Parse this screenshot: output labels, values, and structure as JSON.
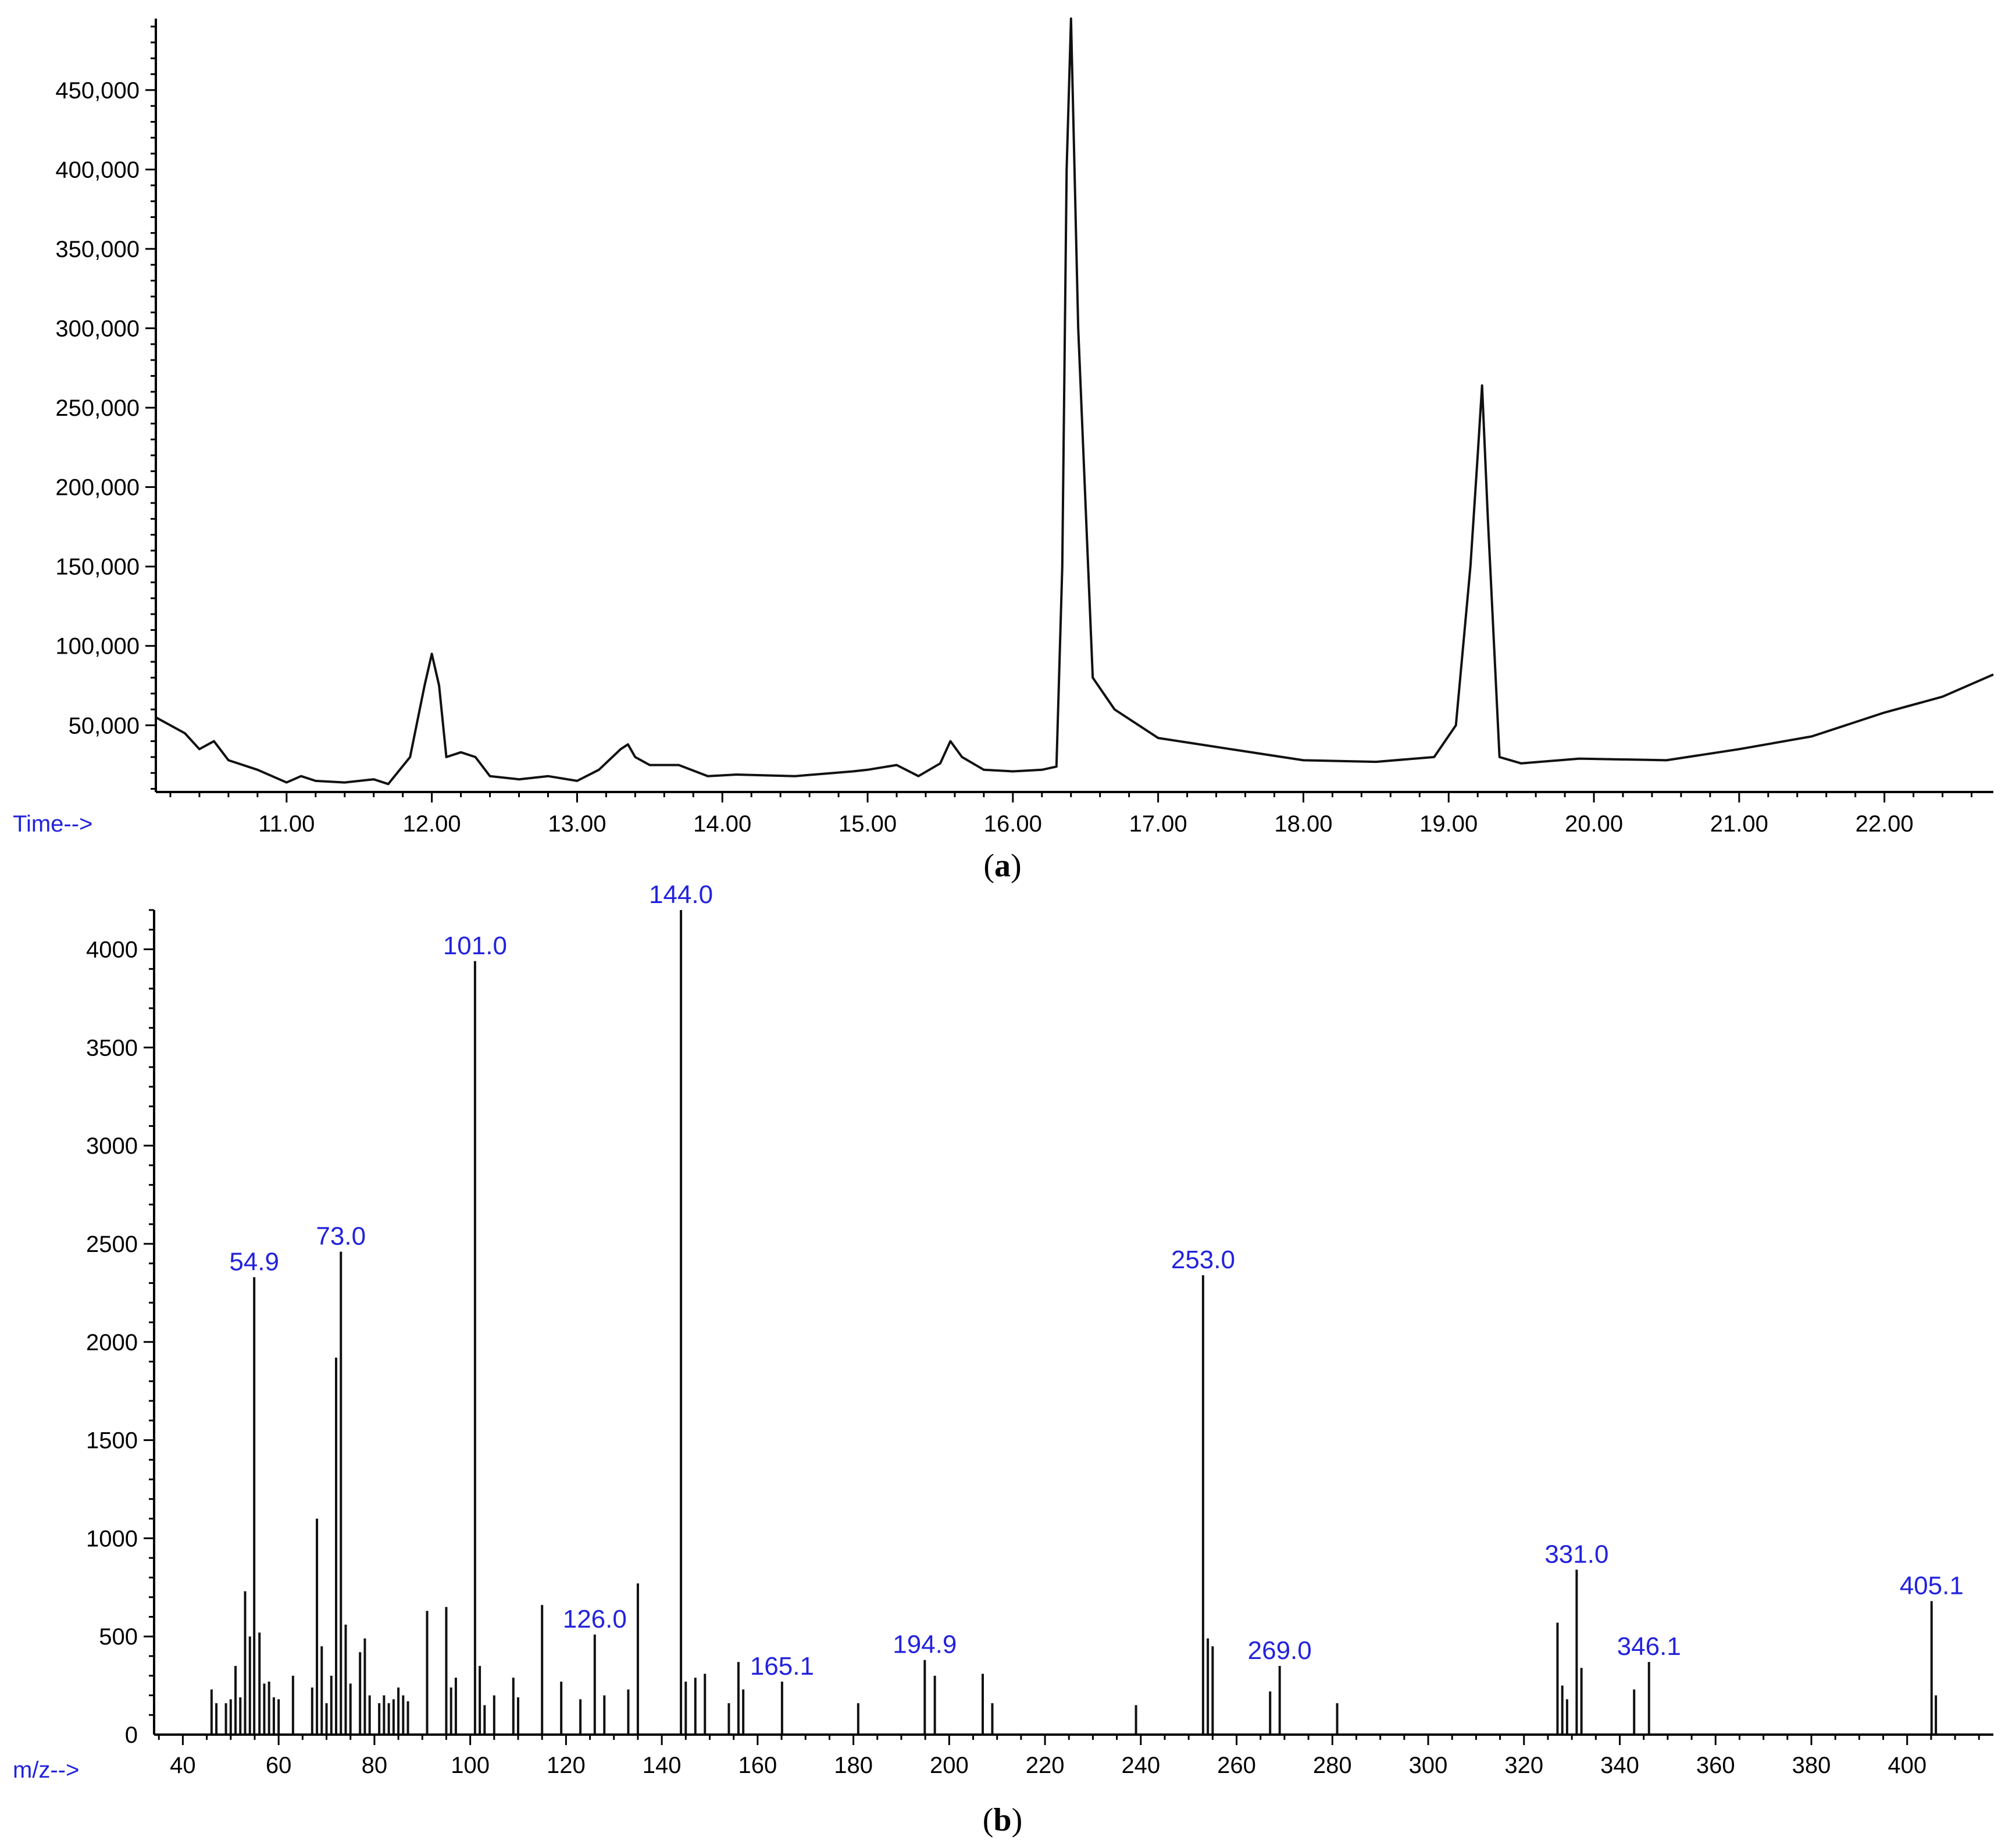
{
  "panels": {
    "a": {
      "caption_open": "(",
      "caption_letter": "a",
      "caption_close": ")"
    },
    "b": {
      "caption_open": "(",
      "caption_letter": "b",
      "caption_close": ")"
    }
  },
  "chart_data": [
    {
      "type": "line",
      "xlabel": "Time-->",
      "ylabel": "",
      "xlim": [
        10.1,
        22.75
      ],
      "ylim": [
        8000,
        495000
      ],
      "x_ticks": [
        11,
        12,
        13,
        14,
        15,
        16,
        17,
        18,
        19,
        20,
        21,
        22
      ],
      "x_tick_labels": [
        "11.00",
        "12.00",
        "13.00",
        "14.00",
        "15.00",
        "16.00",
        "17.00",
        "18.00",
        "19.00",
        "20.00",
        "21.00",
        "22.00"
      ],
      "y_ticks": [
        50000,
        100000,
        150000,
        200000,
        250000,
        300000,
        350000,
        400000,
        450000
      ],
      "y_tick_labels": [
        "50,000",
        "100,000",
        "150,000",
        "200,000",
        "250,000",
        "300,000",
        "350,000",
        "400,000",
        "450,000"
      ],
      "series": [
        {
          "x": [
            10.1,
            10.3,
            10.4,
            10.5,
            10.6,
            10.8,
            11.0,
            11.1,
            11.2,
            11.4,
            11.6,
            11.7,
            11.85,
            11.95,
            12.0,
            12.05,
            12.1,
            12.2,
            12.3,
            12.4,
            12.6,
            12.8,
            13.0,
            13.15,
            13.3,
            13.35,
            13.4,
            13.5,
            13.7,
            13.9,
            14.1,
            14.5,
            14.9,
            15.0,
            15.2,
            15.35,
            15.5,
            15.57,
            15.65,
            15.8,
            16.0,
            16.2,
            16.3,
            16.34,
            16.37,
            16.4,
            16.45,
            16.55,
            16.7,
            17.0,
            17.5,
            18.0,
            18.5,
            18.9,
            19.05,
            19.15,
            19.2,
            19.23,
            19.27,
            19.35,
            19.5,
            19.9,
            20.5,
            21.0,
            21.5,
            22.0,
            22.4,
            22.75
          ],
          "y": [
            55000,
            45000,
            35000,
            40000,
            28000,
            22000,
            14000,
            18000,
            15000,
            14000,
            16000,
            13000,
            30000,
            75000,
            95000,
            75000,
            30000,
            33000,
            30000,
            18000,
            16000,
            18000,
            15000,
            22000,
            35000,
            38000,
            30000,
            25000,
            25000,
            18000,
            19000,
            18000,
            21000,
            22000,
            25000,
            18000,
            26000,
            40000,
            30000,
            22000,
            21000,
            22000,
            24000,
            150000,
            400000,
            495000,
            300000,
            80000,
            60000,
            42000,
            35000,
            28000,
            27000,
            30000,
            50000,
            150000,
            220000,
            264000,
            180000,
            30000,
            26000,
            29000,
            28000,
            35000,
            43000,
            58000,
            68000,
            82000
          ]
        }
      ]
    },
    {
      "type": "bar",
      "xlabel": "m/z-->",
      "ylabel": "",
      "xlim": [
        34,
        418
      ],
      "ylim": [
        0,
        4200
      ],
      "x_ticks": [
        40,
        60,
        80,
        100,
        120,
        140,
        160,
        180,
        200,
        220,
        240,
        260,
        280,
        300,
        320,
        340,
        360,
        380,
        400
      ],
      "x_tick_labels": [
        "40",
        "60",
        "80",
        "100",
        "120",
        "140",
        "160",
        "180",
        "200",
        "220",
        "240",
        "260",
        "280",
        "300",
        "320",
        "340",
        "360",
        "380",
        "400"
      ],
      "y_ticks": [
        0,
        500,
        1000,
        1500,
        2000,
        2500,
        3000,
        3500,
        4000
      ],
      "y_tick_labels": [
        "0",
        "500",
        "1000",
        "1500",
        "2000",
        "2500",
        "3000",
        "3500",
        "4000"
      ],
      "series": [
        {
          "x": [
            46,
            47,
            49,
            50,
            51,
            52,
            53,
            54,
            54.9,
            56,
            57,
            58,
            59,
            60,
            63,
            67,
            68,
            69,
            70,
            71,
            72,
            73.0,
            74,
            75,
            77,
            78,
            79,
            81,
            82,
            83,
            84,
            85,
            86,
            87,
            91,
            95,
            96,
            97,
            101.0,
            102,
            103,
            105,
            109,
            110,
            115,
            119,
            123,
            126.0,
            128,
            133,
            135,
            144.0,
            145,
            147,
            149,
            154,
            156,
            157,
            165.1,
            181,
            194.9,
            197,
            207,
            209,
            239,
            253.0,
            254,
            255,
            267,
            269.0,
            281,
            327,
            328,
            329,
            331.0,
            332,
            343,
            346.1,
            405.1,
            406
          ],
          "values": [
            230,
            160,
            160,
            180,
            350,
            190,
            730,
            500,
            2330,
            520,
            260,
            270,
            190,
            180,
            300,
            240,
            1100,
            450,
            160,
            300,
            1920,
            2460,
            560,
            260,
            420,
            490,
            200,
            160,
            200,
            160,
            180,
            240,
            200,
            170,
            630,
            650,
            240,
            290,
            3940,
            350,
            150,
            200,
            290,
            190,
            660,
            270,
            180,
            510,
            200,
            230,
            770,
            4200,
            270,
            290,
            310,
            160,
            370,
            230,
            270,
            160,
            380,
            300,
            310,
            160,
            150,
            2340,
            490,
            450,
            220,
            350,
            160,
            570,
            250,
            180,
            840,
            340,
            230,
            370,
            680,
            200
          ]
        }
      ],
      "peak_labels": [
        "54.9",
        "73.0",
        "101.0",
        "126.0",
        "144.0",
        "165.1",
        "194.9",
        "253.0",
        "269.0",
        "331.0",
        "346.1",
        "405.1"
      ]
    }
  ]
}
